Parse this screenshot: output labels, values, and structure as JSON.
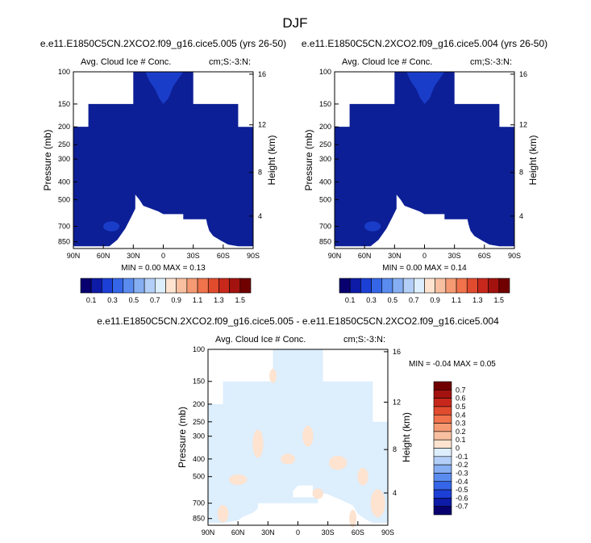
{
  "figure_title": "DJF",
  "chart_data": [
    {
      "type": "contour",
      "title": "e.e11.E1850C5CN.2XCO2.f09_g16.cice5.005 (yrs 26-50)",
      "variable_label": "Avg. Cloud Ice # Conc.",
      "units_label": "cm;S:-3:N:",
      "ylabel": "Pressure (mb)",
      "y2label": "Height (km)",
      "x_ticks": [
        "90N",
        "60N",
        "30N",
        "0",
        "30S",
        "60S",
        "90S"
      ],
      "y_ticks": [
        "100",
        "150",
        "200",
        "250",
        "300",
        "400",
        "500",
        "700",
        "850"
      ],
      "y2_ticks": [
        "16",
        "12",
        "8",
        "4"
      ],
      "stats_label": "MIN =  0.00  MAX =   0.13",
      "min": 0.0,
      "max": 0.13,
      "colorbar_levels": [
        "0.1",
        "0.3",
        "0.5",
        "0.7",
        "0.9",
        "1.1",
        "1.3",
        "1.5"
      ]
    },
    {
      "type": "contour",
      "title": "e.e11.E1850C5CN.2XCO2.f09_g16.cice5.004 (yrs 26-50)",
      "variable_label": "Avg. Cloud Ice # Conc.",
      "units_label": "cm;S:-3:N:",
      "ylabel": "Pressure (mb)",
      "y2label": "Height (km)",
      "x_ticks": [
        "90N",
        "60N",
        "30N",
        "0",
        "30S",
        "60S",
        "90S"
      ],
      "y_ticks": [
        "100",
        "150",
        "200",
        "250",
        "300",
        "400",
        "500",
        "700",
        "850"
      ],
      "y2_ticks": [
        "16",
        "12",
        "8",
        "4"
      ],
      "stats_label": "MIN =  0.00  MAX =   0.14",
      "min": 0.0,
      "max": 0.14,
      "colorbar_levels": [
        "0.1",
        "0.3",
        "0.5",
        "0.7",
        "0.9",
        "1.1",
        "1.3",
        "1.5"
      ]
    },
    {
      "type": "contour",
      "title": "e.e11.E1850C5CN.2XCO2.f09_g16.cice5.005 - e.e11.E1850C5CN.2XCO2.f09_g16.cice5.004",
      "variable_label": "Avg. Cloud Ice # Conc.",
      "units_label": "cm;S:-3:N:",
      "ylabel": "Pressure (mb)",
      "y2label": "Height (km)",
      "x_ticks": [
        "90N",
        "60N",
        "30N",
        "0",
        "30S",
        "60S",
        "90S"
      ],
      "y_ticks": [
        "100",
        "150",
        "200",
        "250",
        "300",
        "400",
        "500",
        "700",
        "850"
      ],
      "y2_ticks": [
        "16",
        "12",
        "8",
        "4"
      ],
      "stats_label": "MIN =  -0.04  MAX =   0.05",
      "min": -0.04,
      "max": 0.05,
      "colorbar_levels": [
        "0.7",
        "0.6",
        "0.5",
        "0.4",
        "0.3",
        "0.2",
        "0.1",
        "0",
        "-0.1",
        "-0.2",
        "-0.3",
        "-0.4",
        "-0.5",
        "-0.6",
        "-0.7"
      ]
    }
  ],
  "colors": {
    "abs_scale": [
      "#08006e",
      "#0d1ba6",
      "#1c3fd6",
      "#3566e8",
      "#5a8cf0",
      "#86aef2",
      "#b3cff7",
      "#ddeefd",
      "#fde3d0",
      "#f8c0a0",
      "#f59a73",
      "#f0734b",
      "#e14b2e",
      "#c8281b",
      "#a3120f",
      "#700000"
    ],
    "diff_scale": [
      "#08006e",
      "#0d1ba6",
      "#1c3fd6",
      "#3566e8",
      "#5a8cf0",
      "#86aef2",
      "#b3cff7",
      "#ddeefd",
      "#fde3d0",
      "#f8c0a0",
      "#f59a73",
      "#f0734b",
      "#e14b2e",
      "#c8281b",
      "#a3120f",
      "#700000"
    ],
    "field_dark": "#0d1f96",
    "field_mid": "#1a3dc9",
    "diff_blue": "#ddeefd",
    "diff_orange": "#fde3d0"
  }
}
